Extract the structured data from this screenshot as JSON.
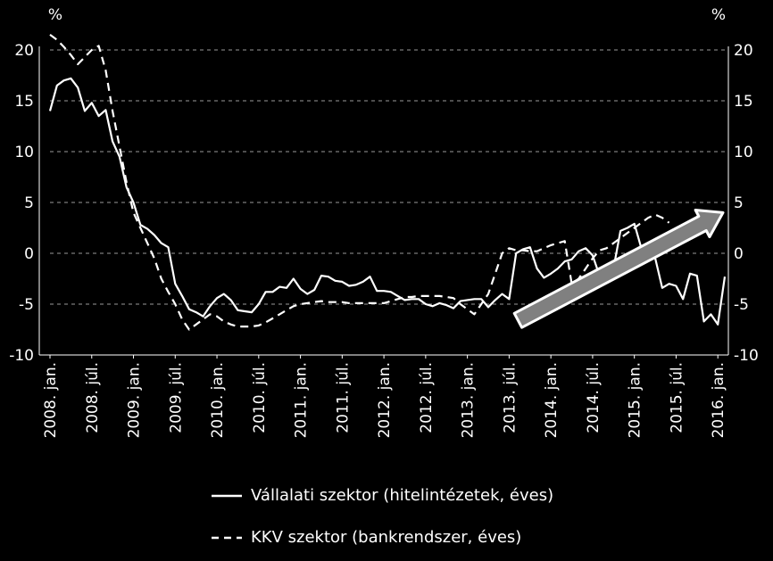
{
  "chart_data": {
    "type": "line",
    "ylabel_left": "%",
    "ylabel_right": "%",
    "ylim": [
      -10,
      20
    ],
    "yticks": [
      -10,
      -5,
      0,
      5,
      10,
      15,
      20
    ],
    "xticks": [
      "2008. jan.",
      "2008. júl.",
      "2009. jan.",
      "2009. júl.",
      "2010. jan.",
      "2010. júl.",
      "2011. jan.",
      "2011. júl.",
      "2012. jan.",
      "2012. júl.",
      "2013. jan.",
      "2013. júl.",
      "2014. jan.",
      "2014. júl.",
      "2015. jan.",
      "2015. júl.",
      "2016. jan."
    ],
    "x_start": "2008-01",
    "grid": "horizontal dashed",
    "legend_position": "bottom",
    "series": [
      {
        "name": "Vállalati szektor (hitelintézetek, éves)",
        "style": "solid",
        "color": "#ffffff",
        "values": [
          14.0,
          16.5,
          17.0,
          17.2,
          16.3,
          14.0,
          14.8,
          13.5,
          14.1,
          11.0,
          9.5,
          6.5,
          5.0,
          2.8,
          2.4,
          1.8,
          1.0,
          0.6,
          -3.0,
          -4.2,
          -5.5,
          -5.8,
          -6.2,
          -5.2,
          -4.4,
          -4.0,
          -4.6,
          -5.6,
          -5.7,
          -5.8,
          -5.0,
          -3.8,
          -3.8,
          -3.3,
          -3.4,
          -2.5,
          -3.5,
          -4.0,
          -3.6,
          -2.2,
          -2.3,
          -2.7,
          -2.8,
          -3.2,
          -3.1,
          -2.8,
          -2.3,
          -3.7,
          -3.7,
          -3.8,
          -4.2,
          -4.6,
          -4.5,
          -4.5,
          -5.0,
          -5.2,
          -4.9,
          -5.1,
          -5.4,
          -4.7,
          -4.6,
          -4.5,
          -4.5,
          -5.3,
          -4.6,
          -4.0,
          -4.5,
          0.0,
          0.4,
          0.6,
          -1.5,
          -2.4,
          -2.0,
          -1.5,
          -0.8,
          -0.6,
          0.2,
          0.5,
          -0.2,
          -2.2,
          -1.9,
          -1.5,
          2.2,
          2.5,
          2.9,
          0.5,
          0.0,
          -0.5,
          -3.4,
          -3.0,
          -3.2,
          -4.5,
          -2.0,
          -2.2,
          -6.7,
          -6.0,
          -7.0,
          -2.3
        ]
      },
      {
        "name": "KKV szektor (bankrendszer, éves)",
        "style": "dashed",
        "color": "#ffffff",
        "values": [
          21.5,
          21.0,
          20.3,
          19.5,
          18.6,
          19.3,
          20.0,
          20.4,
          18.0,
          14.0,
          10.5,
          7.0,
          4.0,
          2.5,
          1.0,
          -0.5,
          -2.5,
          -3.8,
          -5.0,
          -6.5,
          -7.5,
          -7.0,
          -6.5,
          -6.0,
          -6.2,
          -6.7,
          -7.0,
          -7.2,
          -7.2,
          -7.2,
          -7.1,
          -6.8,
          -6.4,
          -6.0,
          -5.6,
          -5.2,
          -5.0,
          -4.9,
          -4.8,
          -4.7,
          -4.8,
          -4.8,
          -4.8,
          -4.9,
          -4.9,
          -4.9,
          -4.9,
          -4.9,
          -4.9,
          -4.7,
          -4.5,
          -4.3,
          -4.3,
          -4.2,
          -4.2,
          -4.2,
          -4.2,
          -4.3,
          -4.4,
          -5.0,
          -5.5,
          -6.0,
          -5.0,
          -4.0,
          -2.0,
          0.0,
          0.5,
          0.3,
          0.3,
          0.2,
          0.2,
          0.5,
          0.8,
          1.0,
          1.2,
          -3.0,
          -2.5,
          -1.5,
          -0.5,
          0.3,
          0.5,
          1.0,
          1.5,
          2.0,
          2.5,
          3.0,
          3.5,
          3.8,
          3.5,
          3.0
        ]
      }
    ],
    "annotation": "upward trend arrow (2013. júl. to 2016. jan.)"
  },
  "legend": {
    "entry1": "Vállalati szektor (hitelintézetek, éves)",
    "entry2": "KKV szektor (bankrendszer, éves)"
  },
  "colors": {
    "background": "#000000",
    "line": "#ffffff",
    "arrow_fill": "#808080",
    "arrow_stroke": "#ffffff"
  }
}
